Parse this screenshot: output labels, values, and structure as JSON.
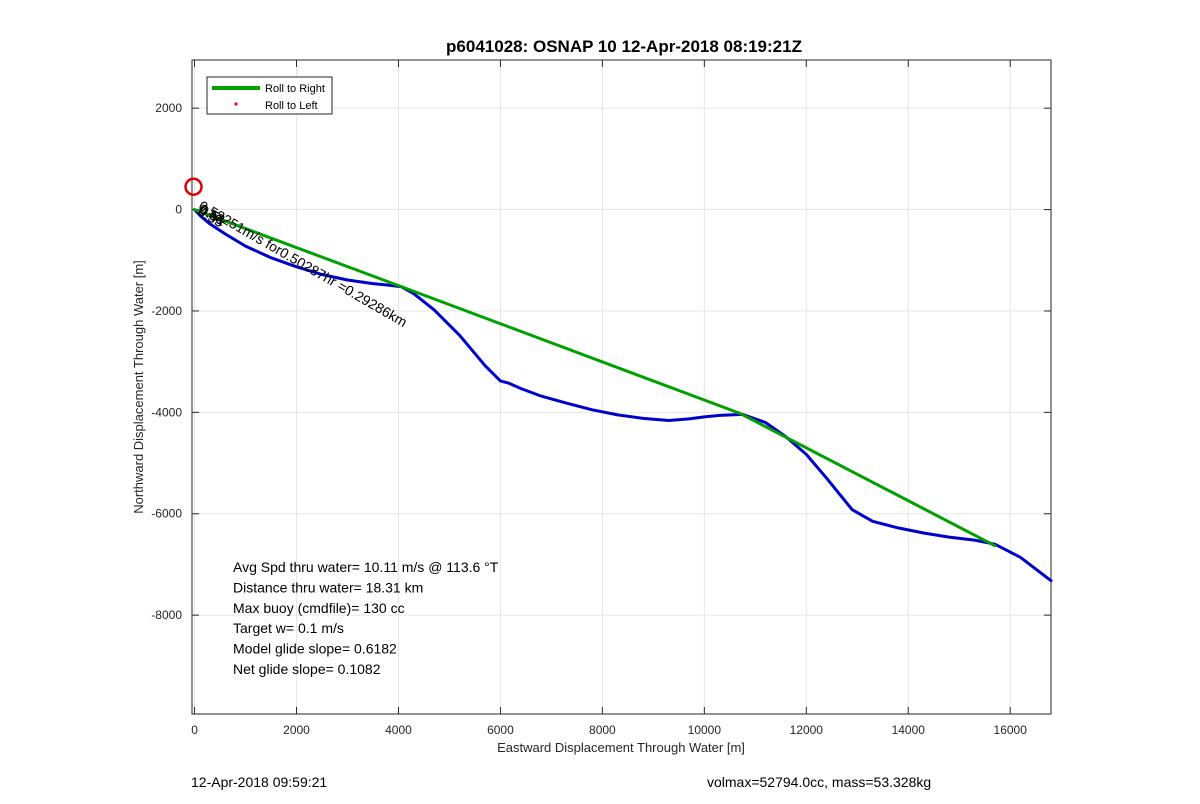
{
  "chart_data": {
    "type": "line",
    "title": "p6041028: OSNAP 10 12-Apr-2018 08:19:21Z",
    "xlabel": "Eastward Displacement Through Water [m]",
    "ylabel": "Northward Displacement Through Water [m]",
    "xlim": [
      -50,
      16800
    ],
    "ylim": [
      -9950,
      2950
    ],
    "xticks": [
      0,
      2000,
      4000,
      6000,
      8000,
      10000,
      12000,
      14000,
      16000
    ],
    "xtick_labels": [
      "0",
      "2000",
      "4000",
      "6000",
      "8000",
      "10000",
      "12000",
      "14000",
      "16000"
    ],
    "yticks": [
      2000,
      0,
      -2000,
      -4000,
      -6000,
      -8000
    ],
    "ytick_labels": [
      "2000",
      "0",
      "-2000",
      "-4000",
      "-6000",
      "-8000"
    ],
    "grid": true,
    "legend_position": "top-left",
    "legend": [
      {
        "label": "Roll to Right",
        "color": "#00a000",
        "style": "line"
      },
      {
        "label": "Roll to Left",
        "color": "#ff0000",
        "style": "point"
      }
    ],
    "series": [
      {
        "color": "#0000cc",
        "x": [
          0,
          120,
          300,
          600,
          1000,
          1500,
          2000,
          2500,
          3000,
          3500,
          3800,
          4050,
          4300,
          4700,
          5200,
          5700,
          6000,
          6150,
          6400,
          6800,
          7300,
          7800,
          8300,
          8800,
          9300,
          9700,
          10000,
          10300,
          10750,
          11200,
          11600,
          12000,
          12400,
          12900,
          13300,
          13800,
          14300,
          14800,
          15300,
          15700,
          16200,
          16800
        ],
        "y": [
          0,
          -130,
          -280,
          -480,
          -720,
          -950,
          -1130,
          -1280,
          -1390,
          -1460,
          -1490,
          -1520,
          -1660,
          -1980,
          -2480,
          -3080,
          -3380,
          -3420,
          -3530,
          -3680,
          -3820,
          -3950,
          -4050,
          -4120,
          -4160,
          -4130,
          -4090,
          -4060,
          -4040,
          -4200,
          -4480,
          -4830,
          -5300,
          -5920,
          -6150,
          -6280,
          -6380,
          -6460,
          -6520,
          -6600,
          -6860,
          -7320
        ]
      },
      {
        "name": "Roll to Right",
        "color": "#00a000",
        "x": [
          0,
          4000,
          10700,
          15700
        ],
        "y": [
          0,
          -1500,
          -4020,
          -6630
        ]
      }
    ],
    "markers": [
      {
        "type": "circle",
        "color": "#dd0000",
        "x": -20,
        "y": 450
      }
    ],
    "annotations": [
      {
        "text": "0.58251m/s for0.50287hr =0.29286km",
        "x": 60,
        "y": 20,
        "angle_deg": 30
      },
      {
        "text": "0.53",
        "x": 60,
        "y": -40,
        "angle_deg": 30
      },
      {
        "text": "0.51",
        "x": 80,
        "y": -60,
        "angle_deg": 30
      },
      {
        "text": "0.55",
        "x": 40,
        "y": -90,
        "angle_deg": 30
      }
    ],
    "stats": [
      "Avg Spd thru water= 10.11 m/s @ 113.6 °T",
      "Distance thru water= 18.31 km",
      "Max buoy (cmdfile)= 130 cc",
      "Target w= 0.1 m/s",
      "Model glide slope= 0.6182",
      "Net glide slope= 0.1082"
    ],
    "footer": {
      "left": "12-Apr-2018 09:59:21",
      "right": "volmax=52794.0cc, mass=53.328kg"
    }
  }
}
